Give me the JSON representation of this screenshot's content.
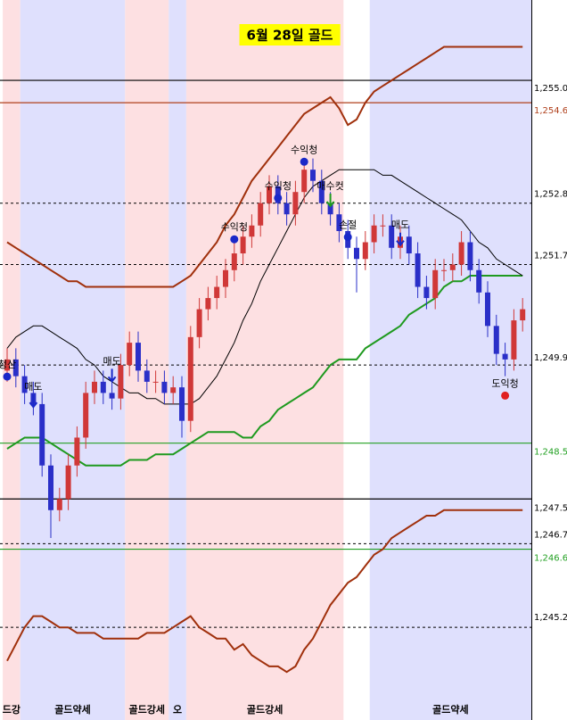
{
  "chart_data": {
    "type": "candlestick",
    "title": "6월 28일 골드",
    "ylim": [
      1243.54,
      1256.44
    ],
    "up_color": "#d03838",
    "down_color": "#2a2fc8",
    "regions": [
      {
        "from": 0,
        "to": 2,
        "color": "#fde0e2",
        "label": "드강"
      },
      {
        "from": 2,
        "to": 14,
        "color": "#dfe0fd",
        "label": "골드약세"
      },
      {
        "from": 14,
        "to": 19,
        "color": "#fde0e2",
        "label": "골드강세"
      },
      {
        "from": 19,
        "to": 21,
        "color": "#dfe0fd",
        "label": "오"
      },
      {
        "from": 21,
        "to": 39,
        "color": "#fde0e2",
        "label": "골드강세"
      },
      {
        "from": 42,
        "to": 60,
        "color": "#dfe0fd",
        "label": "골드약세"
      }
    ],
    "levels": [
      {
        "value": 1255.0,
        "label": "1,255.0",
        "color": "#000000",
        "dash": false
      },
      {
        "value": 1254.6,
        "label": "1,254.6",
        "color": "#b0401c",
        "dash": false
      },
      {
        "value": 1252.8,
        "label": "1,252.8",
        "color": "#000000",
        "dash": true
      },
      {
        "value": 1251.7,
        "label": "1,251.7",
        "color": "#000000",
        "dash": true
      },
      {
        "value": 1249.9,
        "label": "1,249.9",
        "color": "#000000",
        "dash": true
      },
      {
        "value": 1248.5,
        "label": "1,248.5",
        "color": "#22a022",
        "dash": false
      },
      {
        "value": 1247.5,
        "label": "1,247.5",
        "color": "#000000",
        "dash": false
      },
      {
        "value": 1246.7,
        "label": "1,246.7",
        "color": "#000000",
        "dash": true
      },
      {
        "value": 1246.6,
        "label": "1,246.6",
        "color": "#22a022",
        "dash": false
      },
      {
        "value": 1245.2,
        "label": "1,245.2",
        "color": "#000000",
        "dash": true
      }
    ],
    "open": [
      1249.8,
      1250.0,
      1249.7,
      1249.4,
      1249.2,
      1248.1,
      1247.3,
      1247.5,
      1248.1,
      1248.6,
      1249.4,
      1249.6,
      1249.4,
      1249.3,
      1249.9,
      1250.3,
      1249.8,
      1249.6,
      1249.6,
      1249.4,
      1249.5,
      1248.9,
      1250.4,
      1250.9,
      1251.1,
      1251.3,
      1251.6,
      1251.9,
      1252.2,
      1252.4,
      1252.8,
      1253.1,
      1252.8,
      1252.6,
      1253.0,
      1253.4,
      1253.2,
      1252.8,
      1252.6,
      1252.3,
      1252.0,
      1251.8,
      1252.1,
      1252.4,
      1252.4,
      1252.0,
      1252.2,
      1251.9,
      1251.3,
      1251.1,
      1251.6,
      1251.6,
      1251.7,
      1252.1,
      1251.6,
      1251.2,
      1250.6,
      1250.1,
      1250.0,
      1250.7
    ],
    "high": [
      1250.2,
      1250.2,
      1249.9,
      1249.6,
      1249.4,
      1248.3,
      1247.7,
      1248.3,
      1248.8,
      1249.6,
      1249.8,
      1249.8,
      1249.6,
      1250.1,
      1250.5,
      1250.5,
      1250.0,
      1249.8,
      1249.8,
      1249.7,
      1249.7,
      1250.6,
      1251.1,
      1251.3,
      1251.5,
      1251.8,
      1252.1,
      1252.4,
      1252.6,
      1253.0,
      1253.3,
      1253.3,
      1253.0,
      1253.2,
      1253.6,
      1253.6,
      1253.4,
      1253.0,
      1252.8,
      1252.5,
      1252.2,
      1252.3,
      1252.6,
      1252.6,
      1252.6,
      1252.4,
      1252.4,
      1252.1,
      1251.5,
      1251.8,
      1251.8,
      1251.9,
      1252.3,
      1252.3,
      1251.8,
      1251.4,
      1250.8,
      1250.3,
      1250.9,
      1251.1
    ],
    "low": [
      1249.6,
      1249.5,
      1249.2,
      1249.0,
      1247.9,
      1246.8,
      1247.1,
      1247.3,
      1247.9,
      1248.4,
      1249.2,
      1249.2,
      1249.1,
      1249.1,
      1249.7,
      1249.6,
      1249.4,
      1249.4,
      1249.2,
      1249.2,
      1248.6,
      1248.7,
      1250.2,
      1250.7,
      1250.9,
      1251.1,
      1251.4,
      1251.7,
      1252.0,
      1252.2,
      1252.6,
      1252.6,
      1252.4,
      1252.4,
      1252.8,
      1253.0,
      1252.6,
      1252.4,
      1252.1,
      1251.8,
      1251.2,
      1251.6,
      1251.9,
      1252.2,
      1251.8,
      1251.8,
      1251.7,
      1251.1,
      1250.9,
      1250.9,
      1251.4,
      1251.4,
      1251.5,
      1251.4,
      1251.0,
      1250.4,
      1249.9,
      1249.7,
      1249.8,
      1250.5
    ],
    "close": [
      1250.0,
      1249.7,
      1249.4,
      1249.2,
      1248.1,
      1247.3,
      1247.5,
      1248.1,
      1248.6,
      1249.4,
      1249.6,
      1249.4,
      1249.3,
      1249.9,
      1250.3,
      1249.8,
      1249.6,
      1249.6,
      1249.4,
      1249.5,
      1248.9,
      1250.4,
      1250.9,
      1251.1,
      1251.3,
      1251.6,
      1251.9,
      1252.2,
      1252.4,
      1252.8,
      1253.1,
      1252.8,
      1252.6,
      1253.0,
      1253.4,
      1253.2,
      1252.8,
      1252.6,
      1252.3,
      1252.0,
      1251.8,
      1252.1,
      1252.4,
      1252.4,
      1252.0,
      1252.2,
      1251.9,
      1251.3,
      1251.1,
      1251.6,
      1251.6,
      1251.7,
      1252.1,
      1251.6,
      1251.2,
      1250.6,
      1250.1,
      1250.0,
      1250.7,
      1250.9
    ],
    "lines": [
      {
        "color": "#a0300c",
        "values": [
          1252.1,
          1252.0,
          1251.9,
          1251.8,
          1251.7,
          1251.6,
          1251.5,
          1251.4,
          1251.4,
          1251.3,
          1251.3,
          1251.3,
          1251.3,
          1251.3,
          1251.3,
          1251.3,
          1251.3,
          1251.3,
          1251.3,
          1251.3,
          1251.4,
          1251.5,
          1251.7,
          1251.9,
          1252.1,
          1252.4,
          1252.6,
          1252.9,
          1253.2,
          1253.4,
          1253.6,
          1253.8,
          1254.0,
          1254.2,
          1254.4,
          1254.5,
          1254.6,
          1254.7,
          1254.5,
          1254.2,
          1254.3,
          1254.6,
          1254.8,
          1254.9,
          1255.0,
          1255.1,
          1255.2,
          1255.3,
          1255.4,
          1255.5,
          1255.6,
          1255.6,
          1255.6,
          1255.6,
          1255.6,
          1255.6,
          1255.6,
          1255.6,
          1255.6,
          1255.6
        ]
      },
      {
        "color": "#a0300c",
        "values": [
          1244.6,
          1244.9,
          1245.2,
          1245.4,
          1245.4,
          1245.3,
          1245.2,
          1245.2,
          1245.1,
          1245.1,
          1245.1,
          1245.0,
          1245.0,
          1245.0,
          1245.0,
          1245.0,
          1245.1,
          1245.1,
          1245.1,
          1245.2,
          1245.3,
          1245.4,
          1245.2,
          1245.1,
          1245.0,
          1245.0,
          1244.8,
          1244.9,
          1244.7,
          1244.6,
          1244.5,
          1244.5,
          1244.4,
          1244.5,
          1244.8,
          1245.0,
          1245.3,
          1245.6,
          1245.8,
          1246.0,
          1246.1,
          1246.3,
          1246.5,
          1246.6,
          1246.8,
          1246.9,
          1247.0,
          1247.1,
          1247.2,
          1247.2,
          1247.3,
          1247.3,
          1247.3,
          1247.3,
          1247.3,
          1247.3,
          1247.3,
          1247.3,
          1247.3,
          1247.3
        ]
      },
      {
        "color": "#1f9a1f",
        "values": [
          1248.4,
          1248.5,
          1248.6,
          1248.6,
          1248.6,
          1248.5,
          1248.4,
          1248.3,
          1248.2,
          1248.1,
          1248.1,
          1248.1,
          1248.1,
          1248.1,
          1248.2,
          1248.2,
          1248.2,
          1248.3,
          1248.3,
          1248.3,
          1248.4,
          1248.5,
          1248.6,
          1248.7,
          1248.7,
          1248.7,
          1248.7,
          1248.6,
          1248.6,
          1248.8,
          1248.9,
          1249.1,
          1249.2,
          1249.3,
          1249.4,
          1249.5,
          1249.7,
          1249.9,
          1250.0,
          1250.0,
          1250.0,
          1250.2,
          1250.3,
          1250.4,
          1250.5,
          1250.6,
          1250.8,
          1250.9,
          1251.0,
          1251.1,
          1251.3,
          1251.4,
          1251.4,
          1251.5,
          1251.5,
          1251.5,
          1251.5,
          1251.5,
          1251.5,
          1251.5
        ]
      },
      {
        "color": "#000000",
        "values": [
          1250.2,
          1250.4,
          1250.5,
          1250.6,
          1250.6,
          1250.5,
          1250.4,
          1250.3,
          1250.2,
          1250.0,
          1249.9,
          1249.7,
          1249.6,
          1249.5,
          1249.4,
          1249.4,
          1249.3,
          1249.3,
          1249.2,
          1249.2,
          1249.2,
          1249.2,
          1249.3,
          1249.5,
          1249.7,
          1250.0,
          1250.3,
          1250.7,
          1251.0,
          1251.4,
          1251.7,
          1252.0,
          1252.3,
          1252.6,
          1252.9,
          1253.1,
          1253.2,
          1253.3,
          1253.4,
          1253.4,
          1253.4,
          1253.4,
          1253.4,
          1253.3,
          1253.3,
          1253.2,
          1253.1,
          1253.0,
          1252.9,
          1252.8,
          1252.7,
          1252.6,
          1252.5,
          1252.3,
          1252.1,
          1252.0,
          1251.8,
          1251.7,
          1251.6,
          1251.5
        ]
      }
    ],
    "annotations": [
      {
        "text": "수익청",
        "index": 34,
        "price": 1253.75,
        "color": "#1a28c8",
        "marker": "circle"
      },
      {
        "text": "수익청",
        "index": 31,
        "price": 1253.1,
        "color": "#1a28c8",
        "marker": "circle"
      },
      {
        "text": "수익청",
        "index": 26,
        "price": 1252.36,
        "color": "#1a28c8",
        "marker": "circle"
      },
      {
        "text": "매수컷",
        "index": 37,
        "price": 1253.1,
        "color": "#1f9a1f",
        "marker": "arrow"
      },
      {
        "text": "손절",
        "index": 39,
        "price": 1252.4,
        "color": "#1a28c8",
        "marker": "circle"
      },
      {
        "text": "매도",
        "index": 45,
        "price": 1252.4,
        "color": "#1a28c8",
        "marker": "arrow"
      },
      {
        "text": "도익청",
        "index": 57,
        "price": 1249.56,
        "color": "#e02020",
        "marker": "circle"
      },
      {
        "text": "매도",
        "index": 12,
        "price": 1249.96,
        "color": "#1a28c8",
        "marker": "arrow"
      },
      {
        "text": "매도",
        "index": 3,
        "price": 1249.5,
        "color": "#1a28c8",
        "marker": "arrow"
      },
      {
        "text": "청산",
        "index": 0,
        "price": 1249.9,
        "color": "#1a28c8",
        "marker": "circle"
      }
    ]
  }
}
